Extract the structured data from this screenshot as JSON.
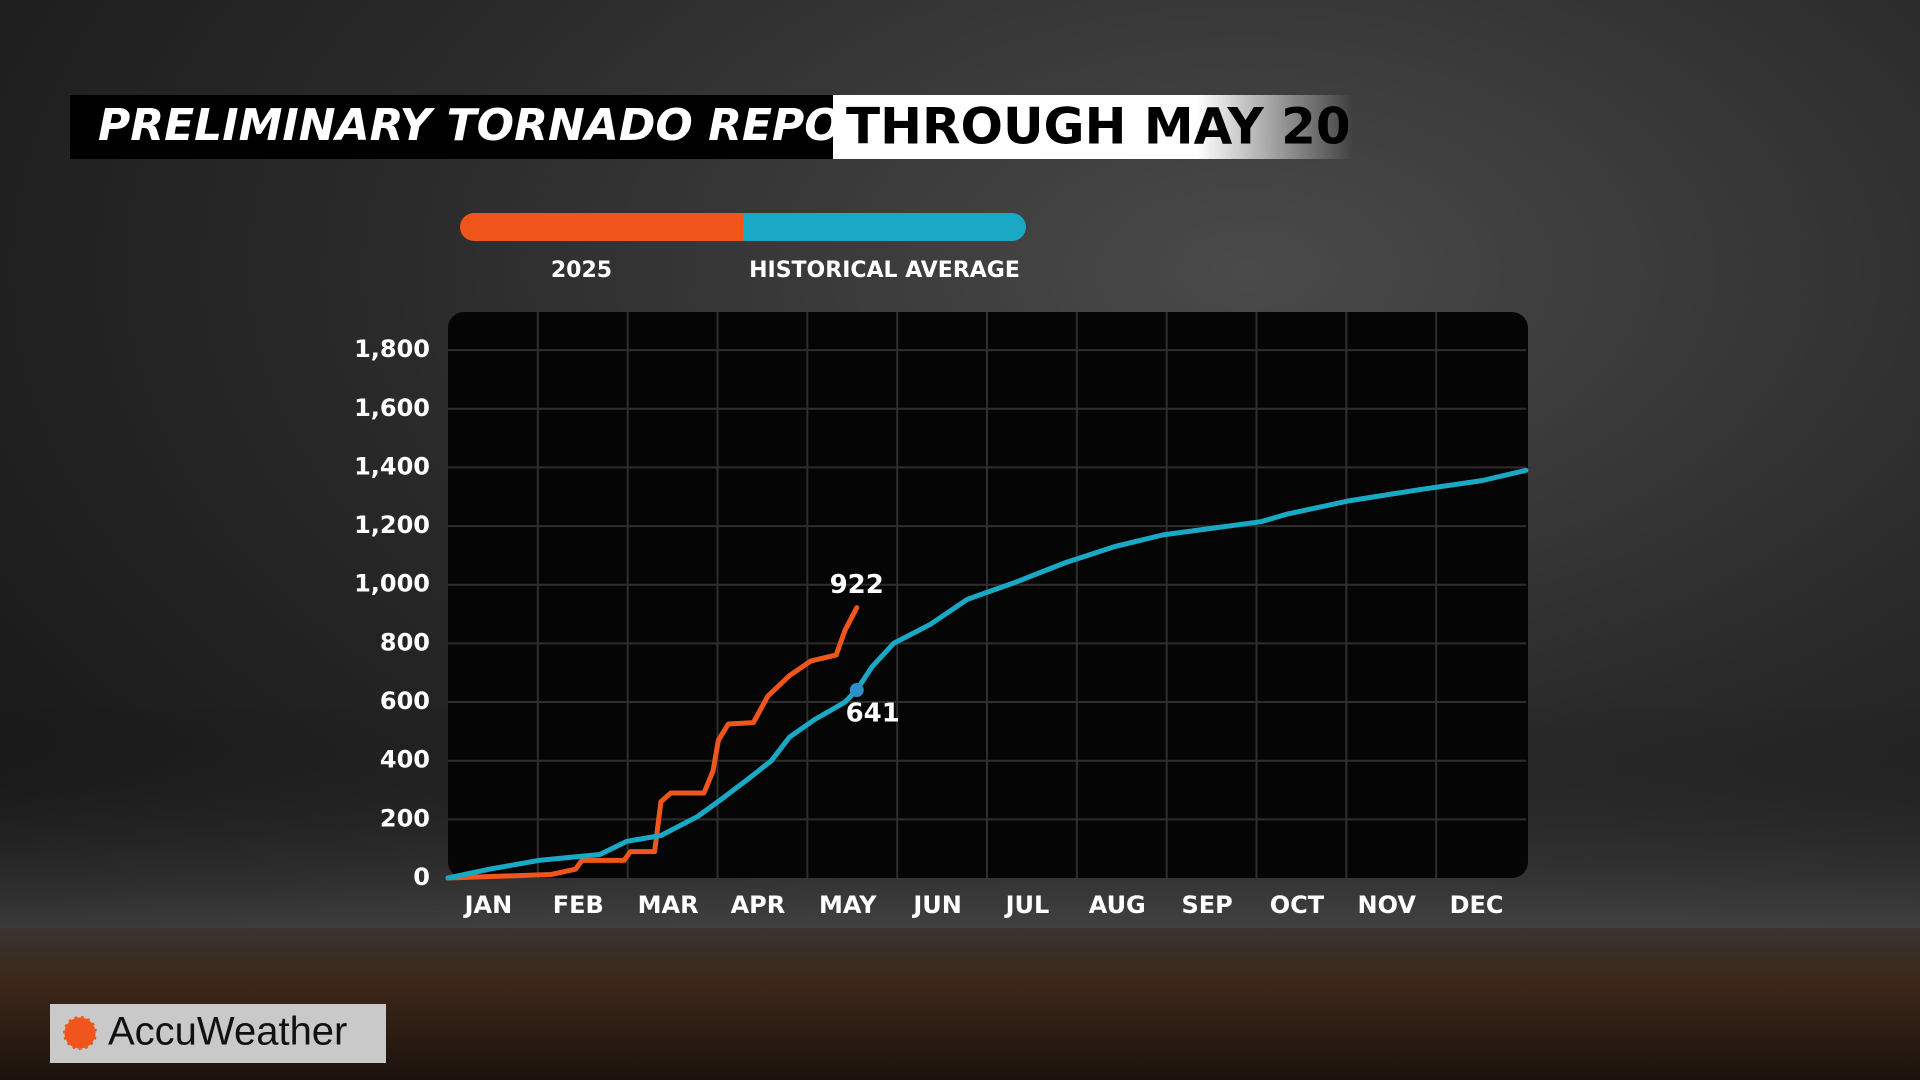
{
  "chart_data": {
    "type": "line",
    "title": "PRELIMINARY TORNADO REPORTS",
    "subtitle": "THROUGH MAY 20",
    "brand": "AccuWeather",
    "categories": [
      "JAN",
      "FEB",
      "MAR",
      "APR",
      "MAY",
      "JUN",
      "JUL",
      "AUG",
      "SEP",
      "OCT",
      "NOV",
      "DEC"
    ],
    "xlim": [
      0,
      12
    ],
    "ylim": [
      0,
      1930
    ],
    "yticks": [
      0,
      200,
      400,
      600,
      800,
      {
        "value": 1000,
        "label": "1,000"
      },
      {
        "value": 1200,
        "label": "1,200"
      },
      {
        "value": 1400,
        "label": "1,400"
      },
      {
        "value": 1600,
        "label": "1,600"
      },
      {
        "value": 1800,
        "label": "1,800"
      }
    ],
    "grid": true,
    "series": [
      {
        "name": "2025",
        "color": "#f0561c",
        "x": [
          0,
          1.15,
          1.42,
          1.49,
          1.96,
          2.03,
          2.3,
          2.37,
          2.48,
          2.85,
          2.95,
          3.01,
          3.12,
          3.4,
          3.56,
          3.8,
          4.04,
          4.32,
          4.42,
          4.55
        ],
        "values": [
          0,
          12,
          30,
          60,
          60,
          90,
          90,
          260,
          290,
          290,
          365,
          470,
          525,
          530,
          620,
          690,
          740,
          760,
          845,
          922
        ]
      },
      {
        "name": "HISTORICAL AVERAGE",
        "color": "#1aa9c4",
        "x": [
          0,
          0.46,
          1.01,
          1.69,
          1.99,
          2.37,
          2.78,
          3.05,
          3.33,
          3.6,
          3.8,
          4.08,
          4.42,
          4.55,
          4.72,
          4.96,
          5.37,
          5.78,
          6.33,
          6.87,
          7.42,
          7.96,
          9.05,
          9.33,
          10.01,
          10.83,
          11.51,
          12
        ],
        "values": [
          0,
          30,
          60,
          80,
          125,
          145,
          210,
          270,
          335,
          400,
          480,
          540,
          600,
          641,
          720,
          800,
          865,
          950,
          1010,
          1075,
          1130,
          1170,
          1215,
          1240,
          1285,
          1325,
          1355,
          1390
        ]
      }
    ]
  }
}
